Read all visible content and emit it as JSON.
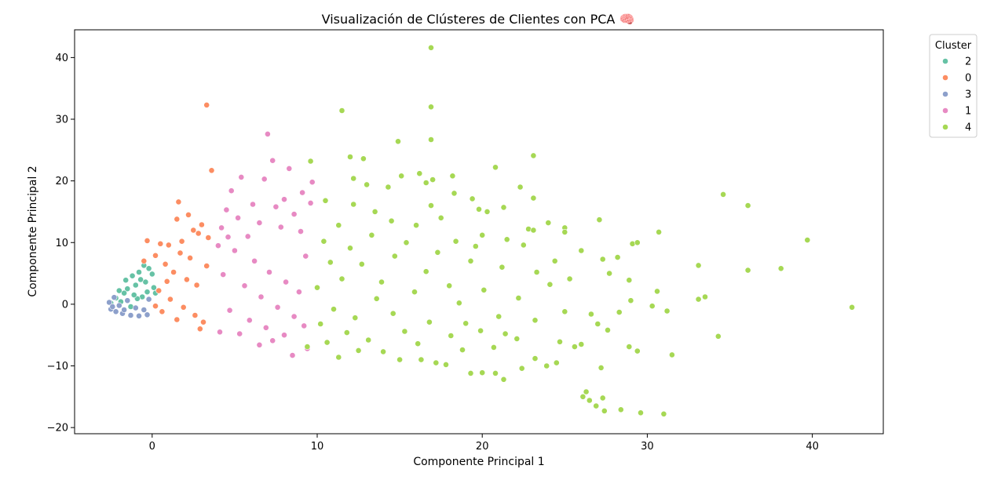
{
  "chart_data": {
    "type": "scatter",
    "title": "Visualización de Clústeres de Clientes con PCA 🧠",
    "xlabel": "Componente Principal 1",
    "ylabel": "Componente Principal 2",
    "xlim": [
      -4.7,
      44.3
    ],
    "ylim": [
      -21,
      44.5
    ],
    "xticks": [
      0,
      10,
      20,
      30,
      40
    ],
    "yticks": [
      -20,
      -10,
      0,
      10,
      20,
      30,
      40
    ],
    "grid": false,
    "legend": {
      "title": "Cluster",
      "placement": "outside-top-right",
      "entries": [
        "2",
        "0",
        "3",
        "1",
        "4"
      ]
    },
    "series": [
      {
        "name": "2",
        "color": "#66c2a5",
        "points": [
          [
            -1.2,
            4.6
          ],
          [
            -0.8,
            5.2
          ],
          [
            -0.5,
            6.3
          ],
          [
            -0.2,
            5.8
          ],
          [
            0.0,
            4.9
          ],
          [
            -1.6,
            3.9
          ],
          [
            -0.3,
            2.0
          ],
          [
            0.2,
            1.8
          ],
          [
            -2.2,
            1.0
          ],
          [
            -1.9,
            0.4
          ],
          [
            -1.5,
            2.5
          ],
          [
            -1.0,
            3.1
          ],
          [
            -0.6,
            1.2
          ],
          [
            -2.5,
            0.2
          ],
          [
            -1.3,
            -0.4
          ],
          [
            -0.9,
            0.9
          ],
          [
            -1.7,
            1.8
          ],
          [
            -0.4,
            3.6
          ],
          [
            0.1,
            2.7
          ],
          [
            -2.0,
            2.2
          ],
          [
            -1.1,
            1.5
          ],
          [
            -0.7,
            4.0
          ]
        ]
      },
      {
        "name": "0",
        "color": "#fc8d62",
        "points": [
          [
            3.3,
            32.3
          ],
          [
            3.6,
            21.7
          ],
          [
            1.6,
            16.6
          ],
          [
            2.2,
            14.5
          ],
          [
            1.5,
            13.8
          ],
          [
            3.0,
            12.9
          ],
          [
            2.5,
            12.0
          ],
          [
            -0.3,
            10.3
          ],
          [
            0.5,
            9.8
          ],
          [
            1.0,
            9.6
          ],
          [
            1.8,
            10.2
          ],
          [
            2.8,
            11.5
          ],
          [
            3.4,
            10.8
          ],
          [
            0.2,
            7.9
          ],
          [
            -0.5,
            7.0
          ],
          [
            0.8,
            6.5
          ],
          [
            1.3,
            5.2
          ],
          [
            2.1,
            4.0
          ],
          [
            2.7,
            3.1
          ],
          [
            0.4,
            2.2
          ],
          [
            1.1,
            0.8
          ],
          [
            1.9,
            -0.5
          ],
          [
            2.6,
            -1.8
          ],
          [
            3.1,
            -2.9
          ],
          [
            2.9,
            -4.0
          ],
          [
            0.6,
            -1.2
          ],
          [
            1.5,
            -2.5
          ],
          [
            0.2,
            -0.3
          ],
          [
            3.3,
            6.2
          ],
          [
            2.3,
            7.5
          ],
          [
            1.7,
            8.3
          ],
          [
            0.9,
            3.7
          ]
        ]
      },
      {
        "name": "3",
        "color": "#8da0cb",
        "points": [
          [
            -2.5,
            -0.8
          ],
          [
            -2.2,
            -1.2
          ],
          [
            -1.8,
            -1.5
          ],
          [
            -1.3,
            -1.8
          ],
          [
            -0.8,
            -1.9
          ],
          [
            -0.3,
            -1.7
          ],
          [
            -2.6,
            0.3
          ],
          [
            -2.3,
            1.1
          ],
          [
            -2.0,
            -0.2
          ],
          [
            -1.5,
            0.6
          ],
          [
            -1.0,
            -0.6
          ],
          [
            -0.5,
            -0.9
          ],
          [
            -0.2,
            0.8
          ],
          [
            -1.7,
            -0.9
          ],
          [
            -2.4,
            -0.4
          ]
        ]
      },
      {
        "name": "1",
        "color": "#e78ac3",
        "points": [
          [
            7.0,
            27.6
          ],
          [
            7.3,
            23.3
          ],
          [
            8.3,
            22.0
          ],
          [
            5.4,
            20.6
          ],
          [
            6.8,
            20.3
          ],
          [
            9.7,
            19.8
          ],
          [
            9.1,
            18.1
          ],
          [
            4.8,
            18.4
          ],
          [
            8.0,
            17.0
          ],
          [
            9.6,
            16.4
          ],
          [
            6.1,
            16.2
          ],
          [
            7.5,
            15.8
          ],
          [
            4.5,
            15.3
          ],
          [
            5.2,
            14.0
          ],
          [
            8.6,
            14.6
          ],
          [
            6.5,
            13.2
          ],
          [
            4.2,
            12.4
          ],
          [
            7.8,
            12.5
          ],
          [
            5.8,
            11.0
          ],
          [
            9.0,
            11.8
          ],
          [
            4.0,
            9.5
          ],
          [
            5.0,
            8.7
          ],
          [
            6.2,
            7.0
          ],
          [
            7.1,
            5.2
          ],
          [
            8.1,
            3.6
          ],
          [
            8.9,
            2.0
          ],
          [
            4.3,
            4.8
          ],
          [
            5.6,
            3.0
          ],
          [
            6.6,
            1.2
          ],
          [
            7.6,
            -0.5
          ],
          [
            8.6,
            -2.0
          ],
          [
            9.2,
            -3.5
          ],
          [
            4.7,
            -1.0
          ],
          [
            5.9,
            -2.6
          ],
          [
            6.9,
            -3.8
          ],
          [
            8.0,
            -5.0
          ],
          [
            6.5,
            -6.6
          ],
          [
            8.5,
            -8.3
          ],
          [
            9.4,
            -7.2
          ],
          [
            4.1,
            -4.5
          ],
          [
            5.3,
            -4.8
          ],
          [
            7.3,
            -5.9
          ],
          [
            9.3,
            7.8
          ],
          [
            4.6,
            10.9
          ]
        ]
      },
      {
        "name": "4",
        "color": "#a6d854",
        "points": [
          [
            16.9,
            41.6
          ],
          [
            16.9,
            32.0
          ],
          [
            11.5,
            31.4
          ],
          [
            16.9,
            26.7
          ],
          [
            14.9,
            26.4
          ],
          [
            23.1,
            24.1
          ],
          [
            12.0,
            23.9
          ],
          [
            12.8,
            23.6
          ],
          [
            9.6,
            23.2
          ],
          [
            20.8,
            22.2
          ],
          [
            16.2,
            21.2
          ],
          [
            15.1,
            20.8
          ],
          [
            18.2,
            20.8
          ],
          [
            12.2,
            20.4
          ],
          [
            17.0,
            20.2
          ],
          [
            13.0,
            19.4
          ],
          [
            14.3,
            19.0
          ],
          [
            16.6,
            19.7
          ],
          [
            22.3,
            19.0
          ],
          [
            18.3,
            18.0
          ],
          [
            19.4,
            17.1
          ],
          [
            23.1,
            17.2
          ],
          [
            34.6,
            17.8
          ],
          [
            36.1,
            16.0
          ],
          [
            16.9,
            16.0
          ],
          [
            19.8,
            15.4
          ],
          [
            21.3,
            15.7
          ],
          [
            10.5,
            16.8
          ],
          [
            12.2,
            16.2
          ],
          [
            13.5,
            15.0
          ],
          [
            17.5,
            14.0
          ],
          [
            20.3,
            15.0
          ],
          [
            24.0,
            13.2
          ],
          [
            27.1,
            13.7
          ],
          [
            25.0,
            12.4
          ],
          [
            14.5,
            13.5
          ],
          [
            16.0,
            12.8
          ],
          [
            22.8,
            12.2
          ],
          [
            23.1,
            12.0
          ],
          [
            30.7,
            11.7
          ],
          [
            25.0,
            11.7
          ],
          [
            20.0,
            11.2
          ],
          [
            21.5,
            10.5
          ],
          [
            39.7,
            10.4
          ],
          [
            18.4,
            10.2
          ],
          [
            29.1,
            9.8
          ],
          [
            29.4,
            10.0
          ],
          [
            22.5,
            9.6
          ],
          [
            26.0,
            8.7
          ],
          [
            27.3,
            7.3
          ],
          [
            28.2,
            7.6
          ],
          [
            33.1,
            6.3
          ],
          [
            36.1,
            5.5
          ],
          [
            38.1,
            5.8
          ],
          [
            27.7,
            5.0
          ],
          [
            28.9,
            3.9
          ],
          [
            30.6,
            2.1
          ],
          [
            25.3,
            4.1
          ],
          [
            24.1,
            3.2
          ],
          [
            33.5,
            1.2
          ],
          [
            33.1,
            0.8
          ],
          [
            29.0,
            0.6
          ],
          [
            31.2,
            -1.1
          ],
          [
            42.4,
            -0.5
          ],
          [
            30.3,
            -0.3
          ],
          [
            26.6,
            -1.6
          ],
          [
            28.3,
            -1.3
          ],
          [
            34.3,
            -5.2
          ],
          [
            27.0,
            -3.2
          ],
          [
            27.6,
            -4.2
          ],
          [
            26.0,
            -6.5
          ],
          [
            28.9,
            -6.9
          ],
          [
            29.4,
            -7.6
          ],
          [
            31.5,
            -8.2
          ],
          [
            27.2,
            -10.3
          ],
          [
            24.5,
            -9.5
          ],
          [
            23.2,
            -8.8
          ],
          [
            21.3,
            -12.2
          ],
          [
            19.3,
            -11.2
          ],
          [
            20.0,
            -11.1
          ],
          [
            20.8,
            -11.2
          ],
          [
            26.3,
            -14.2
          ],
          [
            26.1,
            -15.0
          ],
          [
            26.5,
            -15.6
          ],
          [
            26.9,
            -16.5
          ],
          [
            27.3,
            -15.2
          ],
          [
            27.4,
            -17.3
          ],
          [
            28.4,
            -17.1
          ],
          [
            29.6,
            -17.6
          ],
          [
            31.0,
            -17.8
          ],
          [
            23.9,
            -10.0
          ],
          [
            22.4,
            -10.4
          ],
          [
            17.2,
            -9.5
          ],
          [
            15.0,
            -9.0
          ],
          [
            11.3,
            -8.6
          ],
          [
            9.4,
            -6.9
          ],
          [
            10.6,
            -6.2
          ],
          [
            12.5,
            -7.5
          ],
          [
            14.0,
            -7.7
          ],
          [
            16.3,
            -9.0
          ],
          [
            18.8,
            -7.4
          ],
          [
            17.8,
            -9.8
          ],
          [
            24.7,
            -6.1
          ],
          [
            25.6,
            -6.9
          ],
          [
            21.4,
            -4.8
          ],
          [
            19.9,
            -4.3
          ],
          [
            18.1,
            -5.1
          ],
          [
            16.1,
            -6.4
          ],
          [
            13.1,
            -5.8
          ],
          [
            11.8,
            -4.6
          ],
          [
            10.2,
            -3.2
          ],
          [
            12.3,
            -2.2
          ],
          [
            14.6,
            -1.5
          ],
          [
            16.8,
            -2.9
          ],
          [
            19.0,
            -3.1
          ],
          [
            21.0,
            -2.0
          ],
          [
            23.2,
            -2.6
          ],
          [
            25.0,
            -1.2
          ],
          [
            22.2,
            1.0
          ],
          [
            20.1,
            2.3
          ],
          [
            18.0,
            3.0
          ],
          [
            15.9,
            2.0
          ],
          [
            13.9,
            3.6
          ],
          [
            11.5,
            4.1
          ],
          [
            10.0,
            2.7
          ],
          [
            12.7,
            6.5
          ],
          [
            14.7,
            7.8
          ],
          [
            17.3,
            8.4
          ],
          [
            19.3,
            7.0
          ],
          [
            21.2,
            6.0
          ],
          [
            23.3,
            5.2
          ],
          [
            24.4,
            7.0
          ],
          [
            15.4,
            10.0
          ],
          [
            13.3,
            11.2
          ],
          [
            11.3,
            12.8
          ],
          [
            10.4,
            10.2
          ],
          [
            12.0,
            9.1
          ],
          [
            16.6,
            5.3
          ],
          [
            18.6,
            0.2
          ],
          [
            20.7,
            -7.0
          ],
          [
            22.1,
            -5.6
          ],
          [
            15.3,
            -4.4
          ],
          [
            13.6,
            0.9
          ],
          [
            11.0,
            -0.8
          ],
          [
            10.8,
            6.8
          ],
          [
            19.6,
            9.4
          ]
        ]
      }
    ]
  }
}
